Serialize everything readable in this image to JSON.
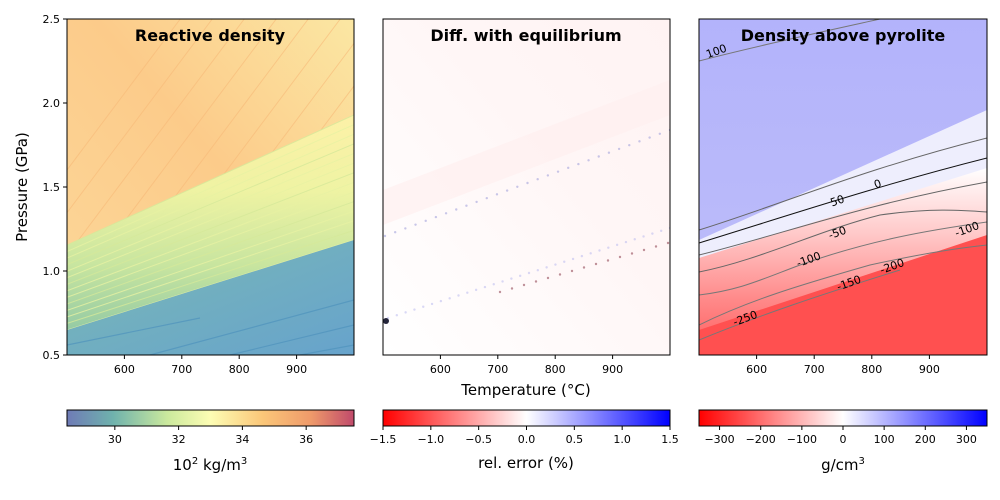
{
  "chart_data": [
    {
      "type": "heatmap",
      "title": "Reactive density",
      "xlabel": "",
      "ylabel": "Pressure (GPa)",
      "xlim": [
        500,
        1000
      ],
      "ylim": [
        0.5,
        2.5
      ],
      "xticks": [
        600,
        700,
        800,
        900
      ],
      "yticks": [
        0.5,
        1.0,
        1.5,
        2.0,
        2.5
      ],
      "ytick_labels": [
        "0.5",
        "1.0",
        "1.5",
        "2.0",
        "2.5"
      ],
      "colormap": "Spectral_r",
      "colorbar": {
        "label_base": "10",
        "label_exp": "2",
        "label_unit": "kg/m",
        "label_unit_exp": "3",
        "range": [
          28.5,
          37.5
        ],
        "ticks": [
          30,
          32,
          34,
          36
        ],
        "tick_labels": [
          "30",
          "32",
          "34",
          "36"
        ],
        "colors": [
          "#6f7bb6",
          "#6fb2ad",
          "#cbe99d",
          "#fdfdb4",
          "#fbc779",
          "#e57c61",
          "#c04a6b"
        ]
      },
      "field": {
        "low_density_region": 29.5,
        "transition_band": [
          31.0,
          34.0
        ],
        "high_density_region": 35.0
      }
    },
    {
      "type": "heatmap",
      "title": "Diff. with equilibrium",
      "xlabel": "Temperature (°C)",
      "ylabel": "",
      "xlim": [
        500,
        1000
      ],
      "ylim": [
        0.5,
        2.5
      ],
      "xticks": [
        600,
        700,
        800,
        900
      ],
      "colormap": "bwr_r",
      "colorbar": {
        "label": "rel. error (%)",
        "range": [
          -1.5,
          1.5
        ],
        "ticks": [
          -1.5,
          -1.0,
          -0.5,
          0.0,
          0.5,
          1.0,
          1.5
        ],
        "tick_labels": [
          "−1.5",
          "−1.0",
          "−0.5",
          "0.0",
          "0.5",
          "1.0",
          "1.5"
        ],
        "colors": [
          "#ff0000",
          "#ffffff",
          "#0000ff"
        ]
      },
      "field": {
        "background_error": 0.0,
        "upper_band_error": -0.05,
        "peak_error_point": {
          "T": 505,
          "P": 0.7,
          "error": 1.5
        }
      }
    },
    {
      "type": "heatmap",
      "title": "Density above pyrolite",
      "xlabel": "",
      "ylabel": "",
      "xlim": [
        500,
        1000
      ],
      "ylim": [
        0.5,
        2.5
      ],
      "xticks": [
        600,
        700,
        800,
        900
      ],
      "colormap": "bwr_r",
      "colorbar": {
        "label_unit": "g/cm",
        "label_unit_exp": "3",
        "range": [
          -350,
          350
        ],
        "ticks": [
          -300,
          -200,
          -100,
          0,
          100,
          200,
          300
        ],
        "tick_labels": [
          "−300",
          "−200",
          "−100",
          "0",
          "100",
          "200",
          "300"
        ],
        "colors": [
          "#ff0000",
          "#ffffff",
          "#0000ff"
        ]
      },
      "contour_labels": [
        {
          "text": "100",
          "T": 530,
          "P": 2.31
        },
        {
          "text": "50",
          "T": 740,
          "P": 1.42
        },
        {
          "text": "0",
          "T": 810,
          "P": 1.52
        },
        {
          "text": "-50",
          "T": 740,
          "P": 1.23
        },
        {
          "text": "-100",
          "T": 690,
          "P": 1.07
        },
        {
          "text": "-100",
          "T": 965,
          "P": 1.25
        },
        {
          "text": "-150",
          "T": 760,
          "P": 0.93
        },
        {
          "text": "-200",
          "T": 835,
          "P": 1.03
        },
        {
          "text": "-250",
          "T": 580,
          "P": 0.72
        }
      ],
      "field": {
        "upper_region": 100,
        "lower_region": -300
      }
    }
  ]
}
